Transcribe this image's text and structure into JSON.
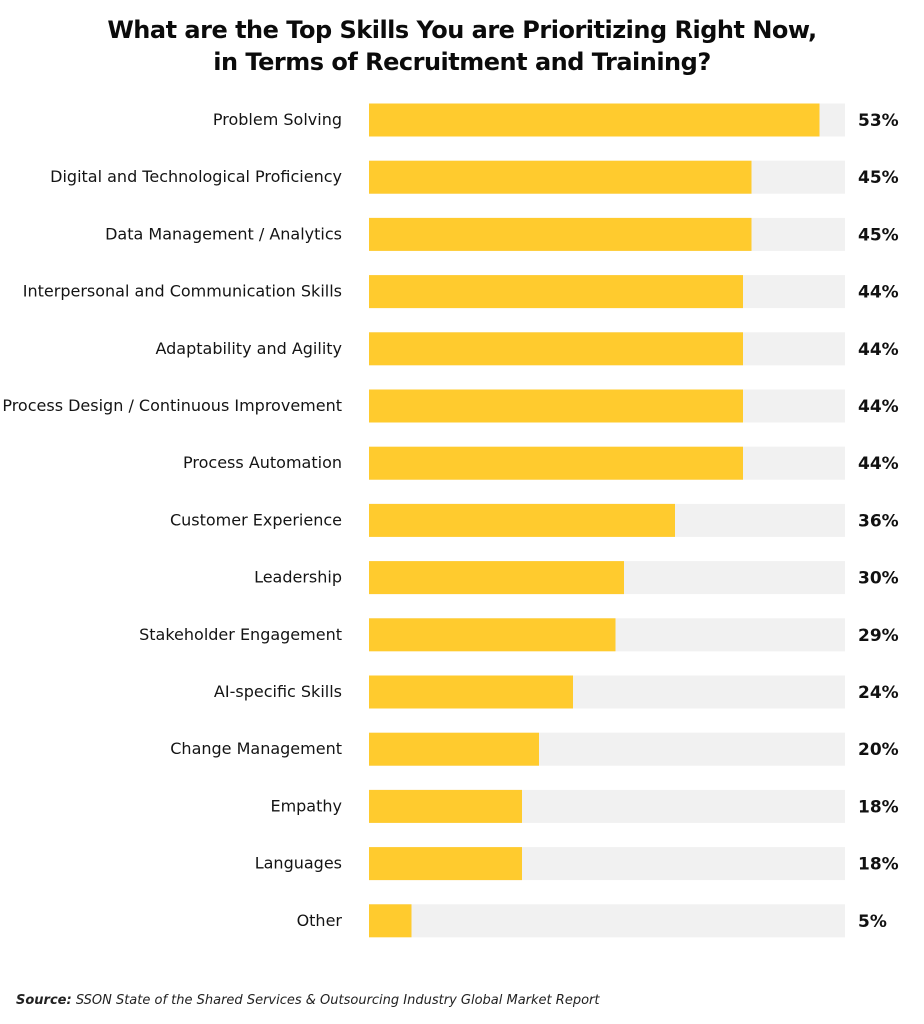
{
  "title_line1": "What are the Top Skills You are Prioritizing Right Now,",
  "title_line2": "in Terms of Recruitment and Training?",
  "source_label": "Source:",
  "source_text": "SSON State of the Shared Services & Outsourcing Industry Global Market Report",
  "colors": {
    "bar": "#FFCB2E",
    "track": "#F1F1F1"
  },
  "chart_data": {
    "type": "bar",
    "orientation": "horizontal",
    "categories": [
      "Problem Solving",
      "Digital and Technological Proficiency",
      "Data Management / Analytics",
      "Interpersonal and Communication Skills",
      "Adaptability and Agility",
      "Process Design / Continuous Improvement",
      "Process Automation",
      "Customer Experience",
      "Leadership",
      "Stakeholder Engagement",
      "AI-specific Skills",
      "Change Management",
      "Empathy",
      "Languages",
      "Other"
    ],
    "values": [
      53,
      45,
      45,
      44,
      44,
      44,
      44,
      36,
      30,
      29,
      24,
      20,
      18,
      18,
      5
    ],
    "value_labels": [
      "53%",
      "45%",
      "45%",
      "44%",
      "44%",
      "44%",
      "44%",
      "36%",
      "30%",
      "29%",
      "24%",
      "20%",
      "18%",
      "18%",
      "5%"
    ],
    "xlim": [
      0,
      56
    ],
    "grid": false,
    "legend": "none"
  }
}
